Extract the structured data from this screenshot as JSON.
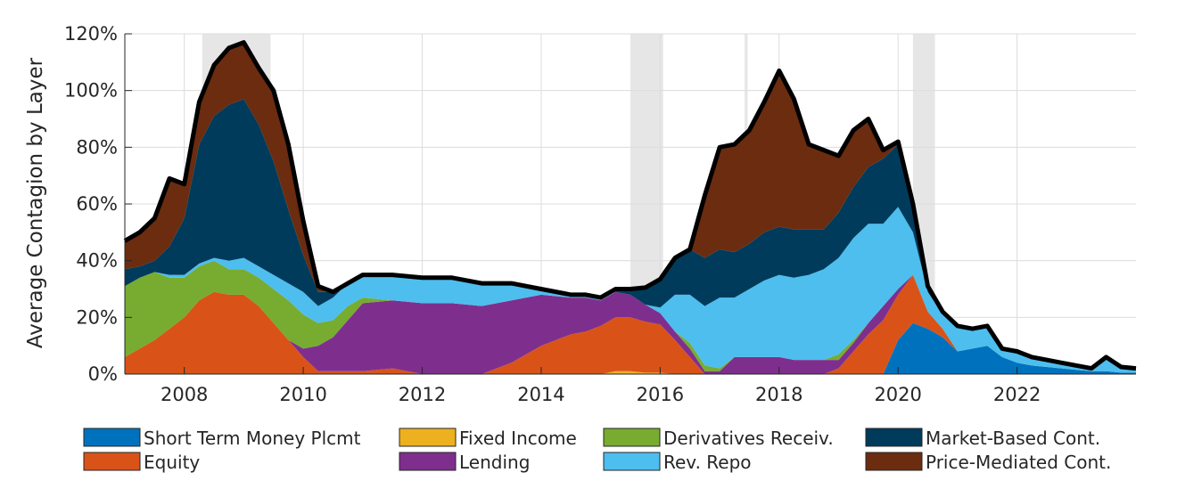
{
  "chart_data": {
    "type": "area",
    "title": "",
    "xlabel": "",
    "ylabel": "Average Contagion by Layer",
    "xlim": [
      2007.0,
      2024.0
    ],
    "ylim": [
      0,
      120
    ],
    "x_ticks": [
      2008,
      2010,
      2012,
      2014,
      2016,
      2018,
      2020,
      2022
    ],
    "x_tick_labels": [
      "2008",
      "2010",
      "2012",
      "2014",
      "2016",
      "2018",
      "2020",
      "2022"
    ],
    "y_ticks": [
      0,
      20,
      40,
      60,
      80,
      100,
      120
    ],
    "y_tick_labels": [
      "0%",
      "20%",
      "40%",
      "60%",
      "80%",
      "100%",
      "120%"
    ],
    "grid": true,
    "legend_position": "bottom",
    "recessions": [
      [
        2008.3,
        2009.45
      ],
      [
        2015.5,
        2016.05
      ],
      [
        2017.42,
        2017.47
      ],
      [
        2020.25,
        2020.62
      ]
    ],
    "total_line_color": "#000000",
    "x": [
      2007.0,
      2007.25,
      2007.5,
      2007.75,
      2008.0,
      2008.25,
      2008.5,
      2008.75,
      2009.0,
      2009.25,
      2009.5,
      2009.75,
      2010.0,
      2010.25,
      2010.5,
      2010.75,
      2011.0,
      2011.5,
      2012.0,
      2012.5,
      2013.0,
      2013.5,
      2014.0,
      2014.5,
      2014.75,
      2015.0,
      2015.25,
      2015.5,
      2015.75,
      2016.0,
      2016.25,
      2016.5,
      2016.75,
      2017.0,
      2017.25,
      2017.5,
      2017.75,
      2018.0,
      2018.25,
      2018.5,
      2018.75,
      2019.0,
      2019.25,
      2019.5,
      2019.75,
      2020.0,
      2020.25,
      2020.5,
      2020.75,
      2021.0,
      2021.25,
      2021.5,
      2021.75,
      2022.0,
      2022.25,
      2022.5,
      2022.75,
      2023.0,
      2023.25,
      2023.5,
      2023.75,
      2024.0
    ],
    "series": [
      {
        "name": "Short Term Money Plcmt",
        "color": "#0072BD",
        "values": [
          0,
          0,
          0,
          0,
          0,
          0,
          0,
          0,
          0,
          0,
          0,
          0,
          0,
          0,
          0,
          0,
          0,
          0,
          0,
          0,
          0,
          0,
          0,
          0,
          0,
          0,
          0,
          0,
          0,
          0,
          0,
          0,
          0,
          0,
          0,
          0,
          0,
          0,
          0,
          0,
          0,
          0,
          0,
          0,
          0,
          12,
          18,
          16,
          13,
          8,
          9,
          10,
          6,
          4,
          3,
          2.5,
          2,
          1.5,
          1,
          1,
          0.5,
          0.5
        ]
      },
      {
        "name": "Fixed Income",
        "color": "#EDB120",
        "values": [
          0,
          0,
          0,
          0,
          0,
          0,
          0,
          0,
          0,
          0,
          0,
          0,
          0,
          0,
          0,
          0,
          0,
          0,
          0,
          0,
          0,
          0,
          0,
          0,
          0,
          0,
          1,
          1,
          0.5,
          0.5,
          0,
          0,
          0,
          0,
          0,
          0,
          0,
          0,
          0,
          0,
          0,
          0,
          0,
          0,
          0,
          0,
          0,
          0,
          0,
          0,
          0,
          0,
          0,
          0,
          0,
          0,
          0,
          0,
          0,
          0,
          0,
          0
        ]
      },
      {
        "name": "Derivatives Receiv.",
        "color": "#77AC30",
        "values": [
          25,
          25,
          24,
          18,
          14,
          12,
          11,
          9,
          9,
          10,
          12,
          14,
          12,
          8,
          6,
          5,
          2,
          0,
          0,
          0,
          0,
          0,
          0,
          0,
          0,
          0,
          0,
          0,
          0,
          0,
          0,
          2,
          2,
          1,
          0,
          0,
          0,
          0,
          0,
          0,
          0,
          2,
          1,
          0,
          0,
          0,
          0,
          0,
          0,
          0,
          0,
          0,
          0,
          0,
          0,
          0,
          0,
          0,
          0,
          0,
          0,
          0
        ]
      },
      {
        "name": "Market-Based Cont.",
        "color": "#003B5C",
        "values": [
          6,
          4,
          4,
          10,
          20,
          42,
          50,
          55,
          56,
          50,
          40,
          26,
          13,
          5,
          2,
          0,
          0,
          0,
          0,
          0,
          0,
          0,
          0,
          0,
          0,
          0,
          1,
          2,
          6,
          10,
          13,
          16,
          17,
          17,
          16,
          16,
          17,
          17,
          17,
          16,
          14,
          16,
          18,
          20,
          23,
          22,
          10,
          2,
          1,
          0,
          0,
          0,
          0,
          0,
          0,
          0,
          0,
          0,
          0,
          0,
          0,
          0
        ]
      },
      {
        "name": "Equity",
        "color": "#D95319",
        "values": [
          6,
          9,
          12,
          16,
          20,
          26,
          29,
          28,
          28,
          24,
          18,
          12,
          6,
          1,
          1,
          1,
          1,
          2,
          0,
          0,
          0,
          4,
          10,
          14,
          15,
          17,
          19,
          19,
          18,
          17,
          12,
          6,
          0,
          0,
          0,
          0,
          0,
          0,
          0,
          0,
          0,
          2,
          8,
          14,
          19,
          16,
          17,
          6,
          3,
          0,
          0,
          0,
          0,
          0,
          0,
          0,
          0,
          0,
          0,
          0,
          0,
          0
        ]
      },
      {
        "name": "Lending",
        "color": "#7E2F8E",
        "values": [
          0,
          0,
          0,
          0,
          0,
          0,
          0,
          0,
          0,
          0,
          0,
          0,
          3,
          9,
          12,
          18,
          24,
          24,
          25,
          25,
          24,
          22,
          18,
          13,
          12,
          9,
          9,
          8,
          6,
          4,
          3,
          3,
          1,
          1,
          6,
          6,
          6,
          6,
          5,
          5,
          5,
          3,
          3,
          4,
          5,
          2,
          0,
          0,
          0,
          0,
          0,
          0,
          0,
          0,
          0,
          0,
          0,
          0,
          0,
          0,
          0,
          0
        ]
      },
      {
        "name": "Rev. Repo",
        "color": "#4DBEEE",
        "values": [
          0,
          0,
          0,
          1,
          1,
          1,
          1,
          3,
          4,
          4,
          5,
          6,
          8,
          6,
          8,
          8,
          8,
          9,
          9,
          9,
          8,
          6,
          2,
          1,
          1,
          1,
          0,
          0,
          0,
          2,
          13,
          17,
          21,
          25,
          21,
          24,
          27,
          29,
          29,
          30,
          32,
          34,
          36,
          35,
          29,
          29,
          15,
          7,
          5,
          9,
          7,
          7,
          3,
          4,
          3,
          2.5,
          2,
          1.5,
          1,
          5,
          2,
          1.5
        ]
      },
      {
        "name": "Price-Mediated Cont.",
        "color": "#6B2C0F",
        "values": [
          10,
          12,
          15,
          24,
          12,
          15,
          18,
          20,
          20,
          20,
          25,
          23,
          12,
          2,
          0,
          0,
          0,
          0,
          0,
          0,
          0,
          0,
          0,
          0,
          0,
          0,
          0,
          0,
          0,
          0,
          0,
          0,
          22,
          36,
          38,
          40,
          46,
          55,
          46,
          30,
          28,
          20,
          20,
          17,
          3,
          1,
          0,
          0,
          0,
          0,
          0,
          0,
          0,
          0,
          0,
          0,
          0,
          0,
          0,
          0,
          0,
          0
        ]
      }
    ],
    "legend_columns": [
      [
        "Short Term Money Plcmt",
        "Equity"
      ],
      [
        "Fixed Income",
        "Lending"
      ],
      [
        "Derivatives Receiv.",
        "Rev. Repo"
      ],
      [
        "Market-Based Cont.",
        "Price-Mediated Cont."
      ]
    ]
  }
}
